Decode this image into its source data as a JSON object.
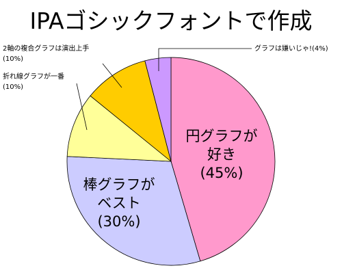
{
  "chart_data": {
    "type": "pie",
    "title": "IPAゴシックフォントで作成",
    "categories": [
      "円グラフが好き",
      "棒グラフがベスト",
      "折れ線グラフが一番",
      "2軸の複合グラフは演出上手",
      "グラフは嫌いじゃ!"
    ],
    "values": [
      45,
      30,
      10,
      10,
      4
    ],
    "value_labels": [
      "(45%)",
      "(30%)",
      "(10%)",
      "(10%)",
      "(4%)"
    ],
    "colors": [
      "#ff99cc",
      "#ccccff",
      "#ffff99",
      "#ffcc00",
      "#cc99ff"
    ]
  }
}
